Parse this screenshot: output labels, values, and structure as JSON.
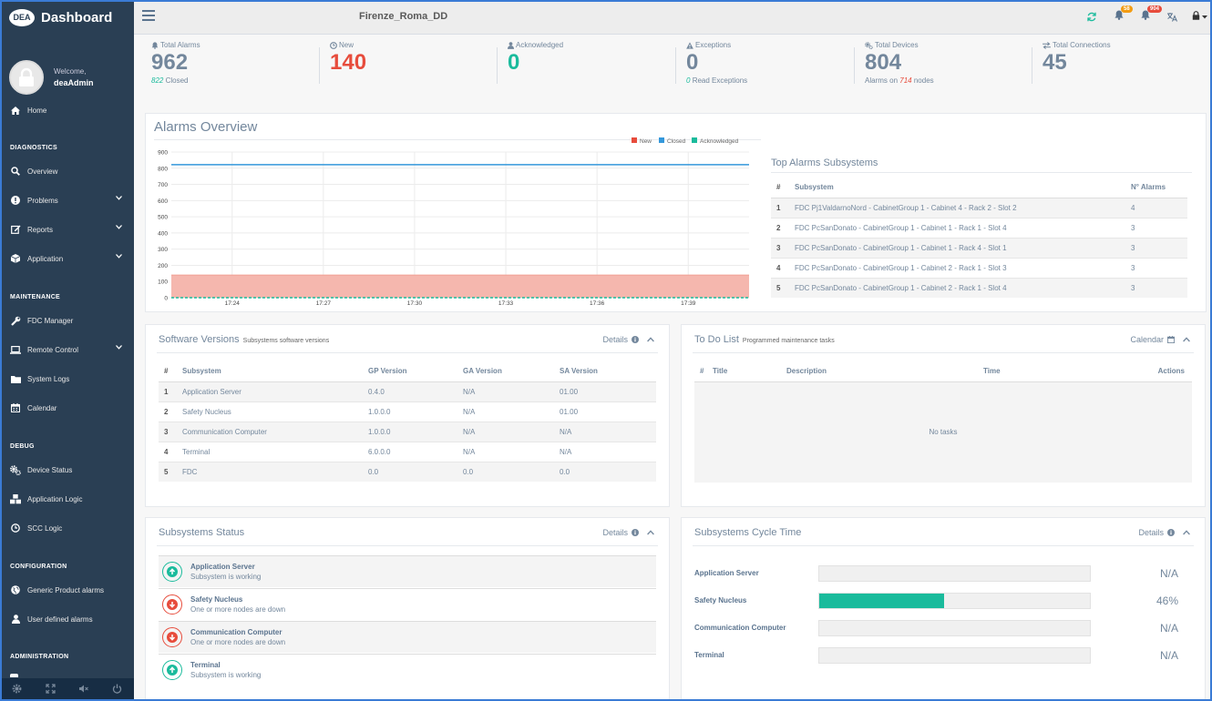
{
  "brand": {
    "logo": "DEA",
    "title": "Dashboard"
  },
  "profile": {
    "welcome": "Welcome,",
    "username": "deaAdmin"
  },
  "nav": {
    "home": "Home",
    "sections": {
      "diagnostics": "DIAGNOSTICS",
      "maintenance": "MAINTENANCE",
      "debug": "DEBUG",
      "configuration": "CONFIGURATION",
      "administration": "ADMINISTRATION"
    },
    "overview": "Overview",
    "problems": "Problems",
    "reports": "Reports",
    "application": "Application",
    "fdc_manager": "FDC Manager",
    "remote_control": "Remote Control",
    "system_logs": "System Logs",
    "calendar": "Calendar",
    "device_status": "Device Status",
    "application_logic": "Application Logic",
    "scc_logic": "SCC Logic",
    "generic_product_alarms": "Generic Product alarms",
    "user_defined_alarms": "User defined alarms"
  },
  "topbar": {
    "page_name": "Firenze_Roma_DD",
    "badge_warnings": "58",
    "badge_alarms": "904"
  },
  "stats": {
    "total_alarms": {
      "label": "Total Alarms",
      "value": "962",
      "sub_value": "822",
      "sub_text": "Closed"
    },
    "new": {
      "label": "New",
      "value": "140"
    },
    "acknowledged": {
      "label": "Acknowledged",
      "value": "0"
    },
    "exceptions": {
      "label": "Exceptions",
      "value": "0",
      "sub_value": "0",
      "sub_text": "Read Exceptions"
    },
    "total_devices": {
      "label": "Total Devices",
      "value": "804",
      "sub_prefix": "Alarms on",
      "sub_value": "714",
      "sub_suffix": "nodes"
    },
    "total_connections": {
      "label": "Total Connections",
      "value": "45"
    }
  },
  "alarms_overview": {
    "title": "Alarms Overview"
  },
  "chart_data": {
    "type": "area",
    "title": "Alarms Overview",
    "x_ticks": [
      "17:24",
      "17:27",
      "17:30",
      "17:33",
      "17:36",
      "17:39"
    ],
    "y_ticks": [
      "900",
      "800",
      "700",
      "600",
      "500",
      "400",
      "300",
      "200",
      "100",
      "0"
    ],
    "ylim": [
      0,
      900
    ],
    "x": [
      "17:22",
      "17:24",
      "17:27",
      "17:30",
      "17:33",
      "17:36",
      "17:39",
      "17:41"
    ],
    "series": [
      {
        "name": "New",
        "color": "#e74c3c",
        "values": [
          140,
          140,
          140,
          140,
          140,
          140,
          140,
          140
        ]
      },
      {
        "name": "Closed",
        "color": "#3498db",
        "values": [
          822,
          822,
          822,
          822,
          822,
          822,
          822,
          822
        ]
      },
      {
        "name": "Acknowledged",
        "color": "#1abb9c",
        "values": [
          0,
          0,
          0,
          0,
          0,
          0,
          0,
          0
        ]
      }
    ],
    "legend": "top-right",
    "grid": true
  },
  "top_alarms": {
    "title": "Top Alarms Subsystems",
    "headers": {
      "idx": "#",
      "subsystem": "Subsystem",
      "count": "N° Alarms"
    },
    "rows": [
      {
        "idx": "1",
        "subsystem": "FDC Pj1ValdarnoNord - CabinetGroup 1 - Cabinet 4 - Rack 2 - Slot 2",
        "count": "4"
      },
      {
        "idx": "2",
        "subsystem": "FDC PcSanDonato - CabinetGroup 1 - Cabinet 1 - Rack 1 - Slot 4",
        "count": "3"
      },
      {
        "idx": "3",
        "subsystem": "FDC PcSanDonato - CabinetGroup 1 - Cabinet 1 - Rack 4 - Slot 1",
        "count": "3"
      },
      {
        "idx": "4",
        "subsystem": "FDC PcSanDonato - CabinetGroup 1 - Cabinet 2 - Rack 1 - Slot 3",
        "count": "3"
      },
      {
        "idx": "5",
        "subsystem": "FDC PcSanDonato - CabinetGroup 1 - Cabinet 2 - Rack 1 - Slot 4",
        "count": "3"
      }
    ]
  },
  "software_versions": {
    "title": "Software Versions",
    "subtitle": "Subsystems software versions",
    "details": "Details",
    "headers": {
      "idx": "#",
      "subsystem": "Subsystem",
      "gp": "GP Version",
      "ga": "GA Version",
      "sa": "SA Version"
    },
    "rows": [
      {
        "idx": "1",
        "subsystem": "Application Server",
        "gp": "0.4.0",
        "ga": "N/A",
        "sa": "01.00"
      },
      {
        "idx": "2",
        "subsystem": "Safety Nucleus",
        "gp": "1.0.0.0",
        "ga": "N/A",
        "sa": "01.00"
      },
      {
        "idx": "3",
        "subsystem": "Communication Computer",
        "gp": "1.0.0.0",
        "ga": "N/A",
        "sa": "N/A"
      },
      {
        "idx": "4",
        "subsystem": "Terminal",
        "gp": "6.0.0.0",
        "ga": "N/A",
        "sa": "N/A"
      },
      {
        "idx": "5",
        "subsystem": "FDC",
        "gp": "0.0",
        "ga": "0.0",
        "sa": "0.0"
      }
    ]
  },
  "todo": {
    "title": "To Do List",
    "subtitle": "Programmed maintenance tasks",
    "calendar": "Calendar",
    "headers": {
      "idx": "#",
      "title": "Title",
      "description": "Description",
      "time": "Time",
      "actions": "Actions"
    },
    "empty": "No tasks"
  },
  "subsystems_status": {
    "title": "Subsystems Status",
    "details": "Details",
    "items": [
      {
        "name": "Application Server",
        "status": "Subsystem is working",
        "state": "up",
        "color": "#1abb9c"
      },
      {
        "name": "Safety Nucleus",
        "status": "One or more nodes are down",
        "state": "down",
        "color": "#e74c3c"
      },
      {
        "name": "Communication Computer",
        "status": "One or more nodes are down",
        "state": "down",
        "color": "#e74c3c"
      },
      {
        "name": "Terminal",
        "status": "Subsystem is working",
        "state": "up",
        "color": "#1abb9c"
      }
    ]
  },
  "cycle_time": {
    "title": "Subsystems Cycle Time",
    "details": "Details",
    "items": [
      {
        "name": "Application Server",
        "value": "N/A",
        "percent": 0
      },
      {
        "name": "Safety Nucleus",
        "value": "46%",
        "percent": 46
      },
      {
        "name": "Communication Computer",
        "value": "N/A",
        "percent": 0
      },
      {
        "name": "Terminal",
        "value": "N/A",
        "percent": 0
      }
    ]
  },
  "colors": {
    "sidebar": "#2a3f54",
    "accent": "#1abb9c",
    "danger": "#e74c3c",
    "info": "#3498db",
    "warning": "#f39c12"
  }
}
